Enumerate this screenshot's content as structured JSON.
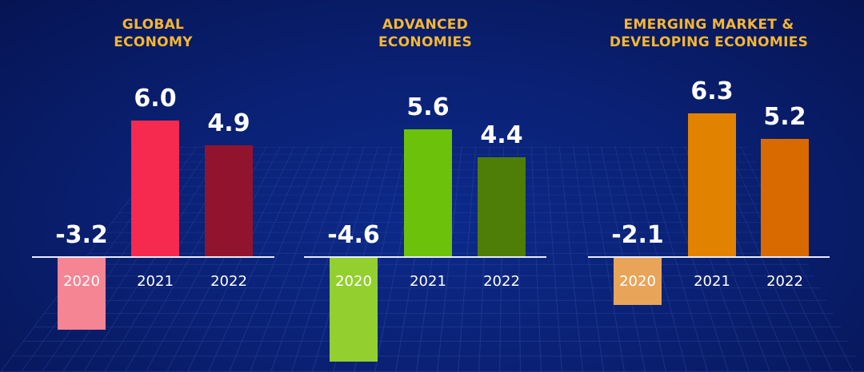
{
  "chart_data": [
    {
      "type": "bar",
      "title_lines": [
        "GLOBAL",
        "ECONOMY"
      ],
      "categories": [
        "2020",
        "2021",
        "2022"
      ],
      "values": [
        -3.2,
        6.0,
        4.9
      ],
      "labels": [
        "-3.2",
        "6.0",
        "4.9"
      ],
      "colors": [
        "#f58593",
        "#f6294f",
        "#92132e"
      ]
    },
    {
      "type": "bar",
      "title_lines": [
        "ADVANCED",
        "ECONOMIES"
      ],
      "categories": [
        "2020",
        "2021",
        "2022"
      ],
      "values": [
        -4.6,
        5.6,
        4.4
      ],
      "labels": [
        "-4.6",
        "5.6",
        "4.4"
      ],
      "colors": [
        "#93cf2e",
        "#6cc20a",
        "#4e7d08"
      ]
    },
    {
      "type": "bar",
      "title_lines": [
        "EMERGING MARKET &",
        "DEVELOPING ECONOMIES"
      ],
      "categories": [
        "2020",
        "2021",
        "2022"
      ],
      "values": [
        -2.1,
        6.3,
        5.2
      ],
      "labels": [
        "-2.1",
        "6.3",
        "5.2"
      ],
      "colors": [
        "#e8a55a",
        "#e28300",
        "#d96a00"
      ]
    }
  ],
  "colors": {
    "title": "#f4b731",
    "background": "#0a2175"
  }
}
